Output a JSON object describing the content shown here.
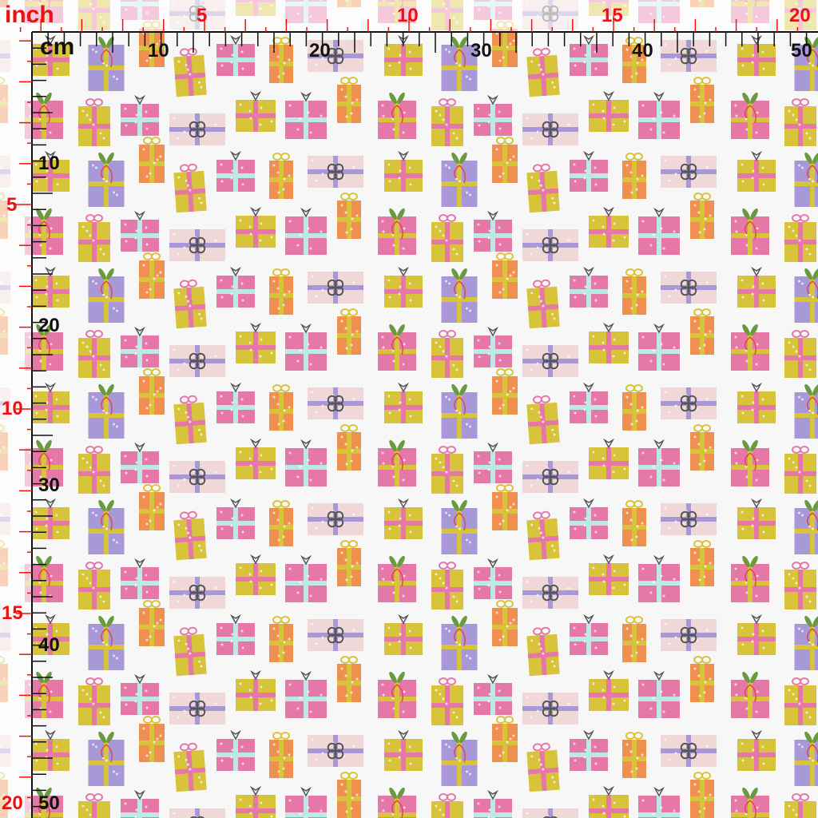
{
  "rulers": {
    "inch_unit": "inch",
    "cm_unit": "cm",
    "top_inch_labels": [
      "5",
      "10",
      "15",
      "20"
    ],
    "top_cm_labels": [
      "10",
      "20",
      "30",
      "40",
      "50"
    ],
    "left_inch_labels": [
      "5",
      "10",
      "15",
      "20"
    ],
    "left_cm_labels": [
      "10",
      "20",
      "30",
      "40",
      "50"
    ],
    "inch_color": "#ee1111",
    "cm_color": "#111111"
  },
  "pattern": {
    "motif": "gift boxes",
    "background": "#f7f7f7",
    "colors": [
      "#d8c43a",
      "#e678a8",
      "#f09050",
      "#a898d8",
      "#f0d8d8",
      "#bde8e8",
      "#555555",
      "#6a9a40"
    ]
  }
}
